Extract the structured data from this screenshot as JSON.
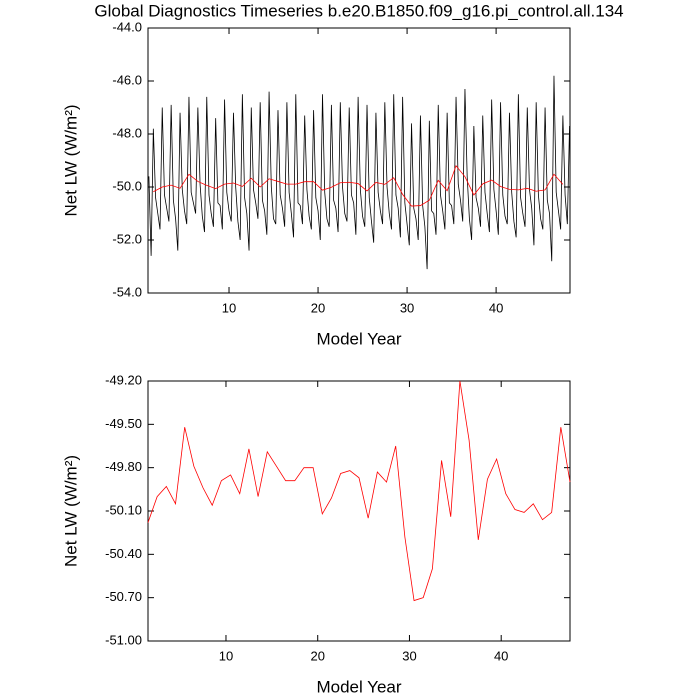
{
  "chart_data": [
    {
      "type": "line",
      "title": "Global Diagnostics Timeseries b.e20.B1850.f09_g16.pi_control.all.134",
      "xlabel": "Model Year",
      "ylabel": "Net LW (W/m²)",
      "xlim": [
        0.9,
        48.3
      ],
      "ylim": [
        -54,
        -44
      ],
      "xticks": [
        10,
        20,
        30,
        40
      ],
      "yticks": [
        {
          "value": -54,
          "label": "-54.0"
        },
        {
          "value": -52,
          "label": "-52.0"
        },
        {
          "value": -50,
          "label": "-50.0"
        },
        {
          "value": -48,
          "label": "-48.0"
        },
        {
          "value": -46,
          "label": "-46.0"
        },
        {
          "value": -44,
          "label": "-44.0"
        }
      ],
      "series": [
        {
          "color": "#000000",
          "x": [
            1,
            1.25,
            1.5,
            1.75,
            2,
            2.25,
            2.5,
            2.75,
            3,
            3.25,
            3.5,
            3.75,
            4,
            4.25,
            4.5,
            4.75,
            5,
            5.25,
            5.5,
            5.75,
            6,
            6.25,
            6.5,
            6.75,
            7,
            7.25,
            7.5,
            7.75,
            8,
            8.25,
            8.5,
            8.75,
            9,
            9.25,
            9.5,
            9.75,
            10,
            10.25,
            10.5,
            10.75,
            11,
            11.25,
            11.5,
            11.75,
            12,
            12.25,
            12.5,
            12.75,
            13,
            13.25,
            13.5,
            13.75,
            14,
            14.25,
            14.5,
            14.75,
            15,
            15.25,
            15.5,
            15.75,
            16,
            16.25,
            16.5,
            16.75,
            17,
            17.25,
            17.5,
            17.75,
            18,
            18.25,
            18.5,
            18.75,
            19,
            19.25,
            19.5,
            19.75,
            20,
            20.25,
            20.5,
            20.75,
            21,
            21.25,
            21.5,
            21.75,
            22,
            22.25,
            22.5,
            22.75,
            23,
            23.25,
            23.5,
            23.75,
            24,
            24.25,
            24.5,
            24.75,
            25,
            25.25,
            25.5,
            25.75,
            26,
            26.25,
            26.5,
            26.75,
            27,
            27.25,
            27.5,
            27.75,
            28,
            28.25,
            28.5,
            28.75,
            29,
            29.25,
            29.5,
            29.75,
            30,
            30.25,
            30.5,
            30.75,
            31,
            31.25,
            31.5,
            31.75,
            32,
            32.25,
            32.5,
            32.75,
            33,
            33.25,
            33.5,
            33.75,
            34,
            34.25,
            34.5,
            34.75,
            35,
            35.25,
            35.5,
            35.75,
            36,
            36.25,
            36.5,
            36.75,
            37,
            37.25,
            37.5,
            37.75,
            38,
            38.25,
            38.5,
            38.75,
            39,
            39.25,
            39.5,
            39.75,
            40,
            40.25,
            40.5,
            40.75,
            41,
            41.25,
            41.5,
            41.75,
            42,
            42.25,
            42.5,
            42.75,
            43,
            43.25,
            43.5,
            43.75,
            44,
            44.25,
            44.5,
            44.75,
            45,
            45.25,
            45.5,
            45.75,
            46,
            46.25,
            46.5,
            46.75,
            47,
            47.25,
            47.5,
            47.75,
            48,
            48.25
          ],
          "values": [
            -49.6,
            -52.6,
            -47.8,
            -50.4,
            -51.0,
            -51.6,
            -47.0,
            -50.3,
            -50.8,
            -51.3,
            -46.9,
            -50.5,
            -51.2,
            -52.4,
            -47.2,
            -50.1,
            -50.9,
            -51.4,
            -46.6,
            -50.2,
            -50.6,
            -51.0,
            -47.0,
            -49.9,
            -51.1,
            -51.7,
            -46.6,
            -50.3,
            -51.0,
            -51.5,
            -47.4,
            -50.6,
            -50.7,
            -51.6,
            -46.7,
            -50.2,
            -50.9,
            -51.3,
            -47.2,
            -50.0,
            -51.3,
            -52.0,
            -46.5,
            -50.4,
            -51.0,
            -52.4,
            -47.0,
            -50.1,
            -50.6,
            -51.2,
            -46.8,
            -50.5,
            -50.9,
            -51.8,
            -46.4,
            -50.0,
            -51.2,
            -51.4,
            -47.1,
            -50.3,
            -50.8,
            -51.5,
            -46.8,
            -50.2,
            -51.0,
            -51.9,
            -46.5,
            -50.6,
            -50.7,
            -51.4,
            -47.3,
            -50.1,
            -51.1,
            -51.6,
            -47.1,
            -50.4,
            -50.9,
            -52.0,
            -46.5,
            -50.2,
            -51.2,
            -51.5,
            -46.9,
            -50.5,
            -50.8,
            -51.7,
            -46.8,
            -50.0,
            -51.0,
            -51.3,
            -47.0,
            -50.3,
            -50.6,
            -51.8,
            -46.6,
            -50.1,
            -51.1,
            -51.5,
            -46.9,
            -50.4,
            -51.3,
            -52.1,
            -47.2,
            -50.2,
            -50.9,
            -51.4,
            -46.8,
            -50.0,
            -51.0,
            -51.6,
            -46.5,
            -50.3,
            -50.8,
            -51.9,
            -46.6,
            -50.6,
            -51.4,
            -52.2,
            -47.6,
            -50.8,
            -51.2,
            -52.0,
            -47.3,
            -50.7,
            -51.5,
            -53.1,
            -47.5,
            -50.9,
            -51.0,
            -51.8,
            -46.9,
            -50.3,
            -50.9,
            -51.6,
            -47.2,
            -50.6,
            -50.7,
            -51.4,
            -46.6,
            -49.9,
            -50.5,
            -51.3,
            -46.3,
            -49.6,
            -51.2,
            -52.0,
            -47.7,
            -50.4,
            -50.8,
            -51.5,
            -47.3,
            -50.2,
            -51.0,
            -51.7,
            -46.7,
            -50.1,
            -50.9,
            -51.8,
            -46.8,
            -50.3,
            -51.1,
            -51.4,
            -47.2,
            -50.2,
            -51.3,
            -51.9,
            -46.5,
            -50.4,
            -51.0,
            -51.5,
            -47.0,
            -50.1,
            -50.8,
            -52.2,
            -46.8,
            -50.3,
            -51.2,
            -51.6,
            -47.0,
            -50.5,
            -51.0,
            -52.8,
            -45.8,
            -50.2,
            -50.9,
            -51.6,
            -47.3,
            -50.3,
            -51.4,
            -47.7
          ]
        },
        {
          "color": "#ff0000",
          "x": [
            1.5,
            2.5,
            3.5,
            4.5,
            5.5,
            6.5,
            7.5,
            8.5,
            9.5,
            10.5,
            11.5,
            12.5,
            13.5,
            14.5,
            15.5,
            16.5,
            17.5,
            18.5,
            19.5,
            20.5,
            21.5,
            22.5,
            23.5,
            24.5,
            25.5,
            26.5,
            27.5,
            28.5,
            29.5,
            30.5,
            31.5,
            32.5,
            33.5,
            34.5,
            35.5,
            36.5,
            37.5,
            38.5,
            39.5,
            40.5,
            41.5,
            42.5,
            43.5,
            44.5,
            45.5,
            46.5,
            47.5
          ],
          "values": [
            -50.18,
            -50.0,
            -49.93,
            -50.05,
            -49.52,
            -49.79,
            -49.94,
            -50.06,
            -49.89,
            -49.85,
            -49.98,
            -49.67,
            -50.0,
            -49.69,
            -49.79,
            -49.89,
            -49.89,
            -49.8,
            -49.8,
            -50.12,
            -50.01,
            -49.84,
            -49.82,
            -49.87,
            -50.15,
            -49.83,
            -49.9,
            -49.65,
            -50.28,
            -50.72,
            -50.7,
            -50.5,
            -49.75,
            -50.14,
            -49.2,
            -49.61,
            -50.3,
            -49.88,
            -49.74,
            -49.98,
            -50.09,
            -50.11,
            -50.05,
            -50.16,
            -50.11,
            -49.52,
            -49.9
          ]
        }
      ]
    },
    {
      "type": "line",
      "xlabel": "Model Year",
      "ylabel": "Net LW (W/m²)",
      "xlim": [
        1.5,
        47.5
      ],
      "ylim": [
        -51,
        -49.2
      ],
      "xticks": [
        10,
        20,
        30,
        40
      ],
      "yticks": [
        {
          "value": -51,
          "label": "-51.00"
        },
        {
          "value": -50.7,
          "label": "-50.70"
        },
        {
          "value": -50.4,
          "label": "-50.40"
        },
        {
          "value": -50.1,
          "label": "-50.10"
        },
        {
          "value": -49.8,
          "label": "-49.80"
        },
        {
          "value": -49.5,
          "label": "-49.50"
        },
        {
          "value": -49.2,
          "label": "-49.20"
        }
      ],
      "series": [
        {
          "color": "#ff0000",
          "x": [
            1.5,
            2.5,
            3.5,
            4.5,
            5.5,
            6.5,
            7.5,
            8.5,
            9.5,
            10.5,
            11.5,
            12.5,
            13.5,
            14.5,
            15.5,
            16.5,
            17.5,
            18.5,
            19.5,
            20.5,
            21.5,
            22.5,
            23.5,
            24.5,
            25.5,
            26.5,
            27.5,
            28.5,
            29.5,
            30.5,
            31.5,
            32.5,
            33.5,
            34.5,
            35.5,
            36.5,
            37.5,
            38.5,
            39.5,
            40.5,
            41.5,
            42.5,
            43.5,
            44.5,
            45.5,
            46.5,
            47.5
          ],
          "values": [
            -50.18,
            -50.0,
            -49.93,
            -50.05,
            -49.52,
            -49.79,
            -49.94,
            -50.06,
            -49.89,
            -49.85,
            -49.98,
            -49.67,
            -50.0,
            -49.69,
            -49.79,
            -49.89,
            -49.89,
            -49.8,
            -49.8,
            -50.12,
            -50.01,
            -49.84,
            -49.82,
            -49.87,
            -50.15,
            -49.83,
            -49.9,
            -49.65,
            -50.28,
            -50.72,
            -50.7,
            -50.5,
            -49.75,
            -50.14,
            -49.2,
            -49.61,
            -50.3,
            -49.88,
            -49.74,
            -49.98,
            -50.09,
            -50.11,
            -50.05,
            -50.16,
            -50.11,
            -49.52,
            -49.9
          ]
        }
      ]
    }
  ]
}
